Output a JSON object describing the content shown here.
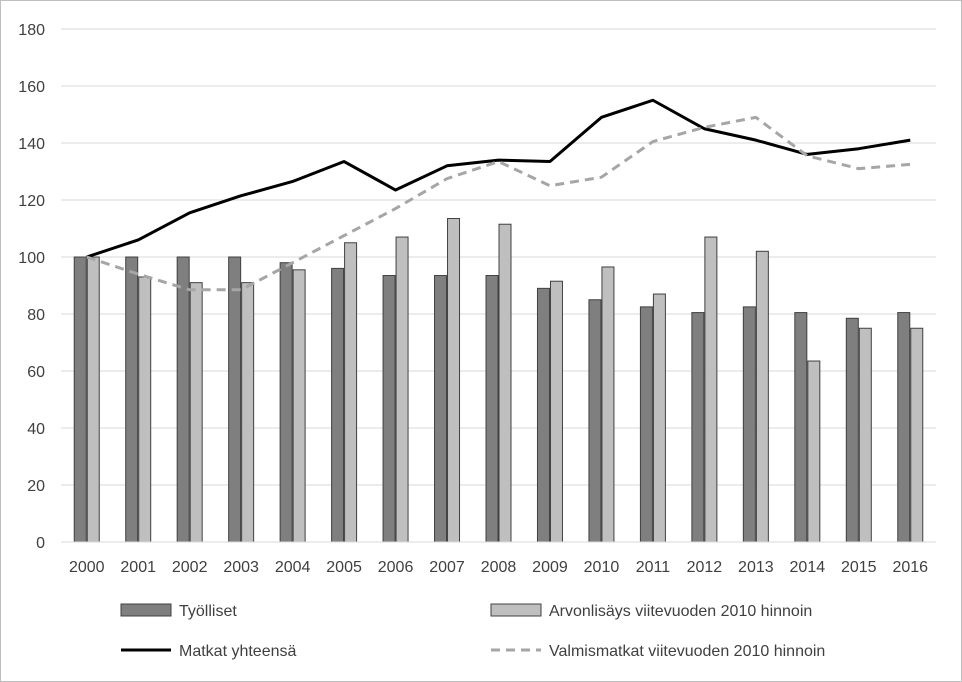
{
  "chart_data": {
    "type": "bar",
    "title": "",
    "xlabel": "",
    "ylabel": "",
    "categories": [
      "2000",
      "2001",
      "2002",
      "2003",
      "2004",
      "2005",
      "2006",
      "2007",
      "2008",
      "2009",
      "2010",
      "2011",
      "2012",
      "2013",
      "2014",
      "2015",
      "2016"
    ],
    "ylim": [
      0,
      180
    ],
    "yticks": [
      0,
      20,
      40,
      60,
      80,
      100,
      120,
      140,
      160,
      180
    ],
    "grid": "horizontal",
    "legend_position": "bottom",
    "series": [
      {
        "name": "Työlliset",
        "kind": "bar",
        "color": "#7f7f7f",
        "values": [
          100,
          100,
          100,
          100,
          98,
          96,
          93.5,
          93.5,
          93.5,
          89,
          85,
          82.5,
          80.5,
          82.5,
          80.5,
          78.5,
          80.5
        ]
      },
      {
        "name": "Arvonlisäys viitevuoden 2010 hinnoin",
        "kind": "bar",
        "color": "#bfbfbf",
        "values": [
          100,
          93,
          91,
          91,
          95.5,
          105,
          107,
          113.5,
          111.5,
          91.5,
          96.5,
          87,
          107,
          102,
          63.5,
          75,
          75
        ]
      },
      {
        "name": "Matkat yhteensä",
        "kind": "line",
        "style": "solid",
        "color": "#000000",
        "values": [
          100,
          106,
          115.5,
          121.5,
          126.5,
          133.5,
          123.5,
          132,
          134,
          133.5,
          149,
          155,
          145,
          141,
          136,
          138,
          141
        ]
      },
      {
        "name": "Valmismatkat viitevuoden 2010 hinnoin",
        "kind": "line",
        "style": "dashed",
        "color": "#a6a6a6",
        "values": [
          100,
          94,
          88.5,
          88.5,
          98,
          107.5,
          117,
          127.5,
          133.5,
          125,
          128,
          140.5,
          145.5,
          149,
          135.5,
          131,
          132.5
        ]
      }
    ]
  }
}
